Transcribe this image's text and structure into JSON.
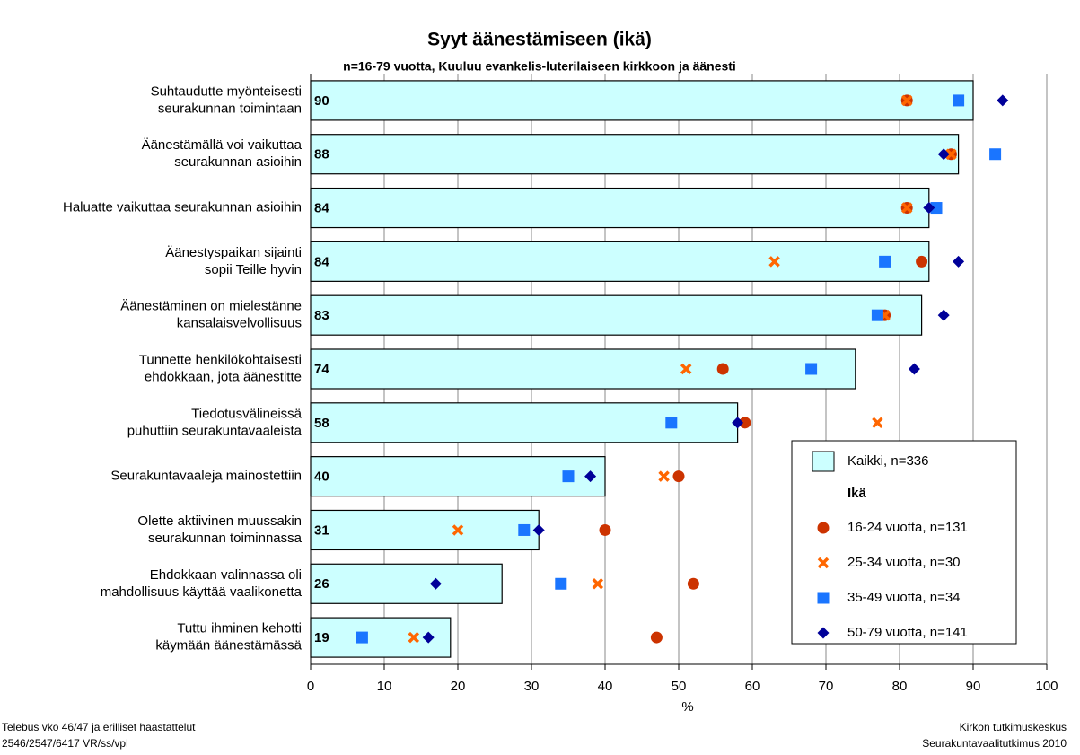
{
  "chart_data": {
    "type": "bar",
    "orientation": "horizontal",
    "title": "Syyt äänestämiseen (ikä)",
    "subtitle": "n=16-79 vuotta, Kuuluu evankelis-luterilaiseen kirkkoon ja äänesti",
    "xlabel": "%",
    "categories": [
      "Suhtaudutte myönteisesti\nseurakunnan toimintaan",
      "Äänestämällä voi vaikuttaa\nseurakunnan asioihin",
      "Haluatte vaikuttaa seurakunnan asioihin",
      "Äänestyspaikan sijainti\nsopii Teille hyvin",
      "Äänestäminen on mielestänne\nkansalaisvelvollisuus",
      "Tunnette henkilökohtaisesti\nehdokkaan, jota äänestitte",
      "Tiedotusvälineissä\npuhuttiin seurakuntavaaleista",
      "Seurakuntavaaleja mainostettiin",
      "Olette aktiivinen muussakin\nseurakunnan toiminnassa",
      "Ehdokkaan valinnassa oli\nmahdollisuus käyttää vaalikonetta",
      "Tuttu ihminen kehotti\nkäymään äänestämässä"
    ],
    "bars": {
      "name": "Kaikki, n=336",
      "color": "#ccffff",
      "values": [
        90,
        88,
        84,
        84,
        83,
        74,
        58,
        40,
        31,
        26,
        19
      ]
    },
    "legend_title": "Ikä",
    "series": [
      {
        "name": "16-24 vuotta, n=131",
        "color": "#cc3300",
        "marker": "circle",
        "values": [
          81,
          87,
          81,
          83,
          78,
          56,
          59,
          50,
          40,
          52,
          47
        ]
      },
      {
        "name": "25-34 vuotta, n=30",
        "color": "#ff6600",
        "marker": "cross",
        "values": [
          81,
          87,
          81,
          63,
          78,
          51,
          77,
          48,
          20,
          39,
          14
        ]
      },
      {
        "name": "35-49 vuotta, n=34",
        "color": "#1a75ff",
        "marker": "square",
        "values": [
          88,
          93,
          85,
          78,
          77,
          68,
          49,
          35,
          29,
          34,
          7
        ]
      },
      {
        "name": "50-79 vuotta, n=141",
        "color": "#000099",
        "marker": "diamond",
        "values": [
          94,
          86,
          84,
          88,
          86,
          82,
          58,
          38,
          31,
          17,
          16
        ]
      }
    ],
    "xlim": [
      0,
      100
    ],
    "xticks": [
      0,
      10,
      20,
      30,
      40,
      50,
      60,
      70,
      80,
      90,
      100
    ],
    "grid": true,
    "legend_position": "lower right"
  },
  "footer": {
    "left": [
      "Telebus vko 46/47 ja erilliset haastattelut",
      "2546/2547/6417 VR/ss/vpl"
    ],
    "right": [
      "Kirkon tutkimuskeskus",
      "Seurakuntavaalitutkimus 2010"
    ]
  }
}
